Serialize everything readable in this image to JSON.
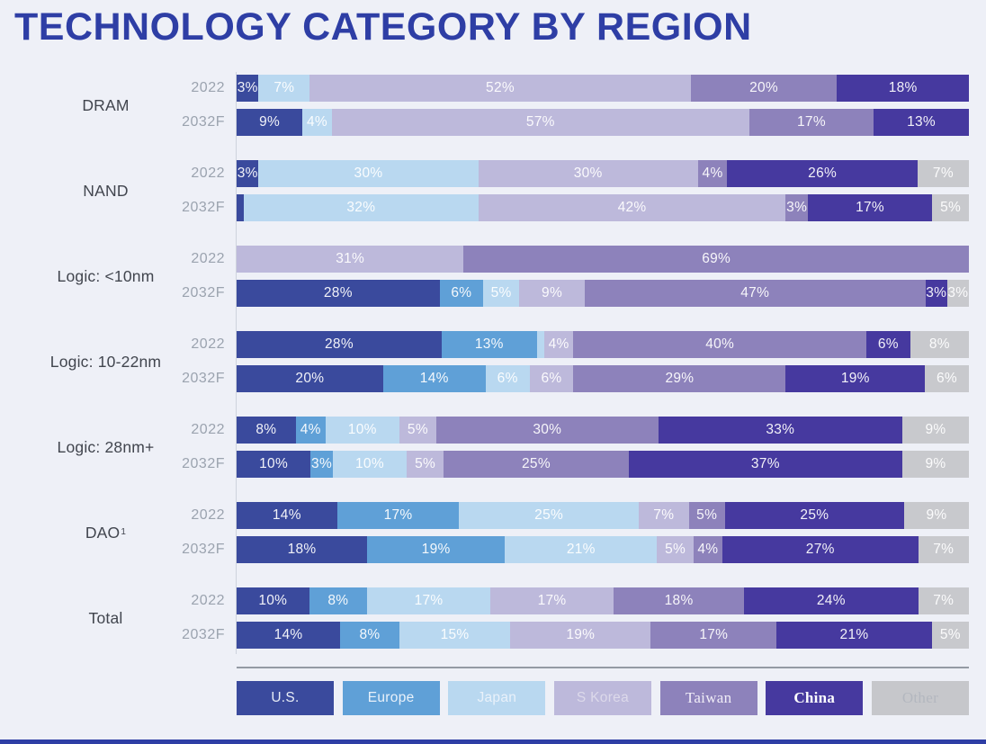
{
  "title": "TECHNOLOGY CATEGORY BY REGION",
  "colors": {
    "background": "#eef0f7",
    "title": "#2e3ea5",
    "category_label": "#41454e",
    "year_label": "#9ba3af",
    "divider": "#949aa4",
    "bar_label": "#ffffff"
  },
  "legend": [
    {
      "label": "U.S.",
      "color": "#3a4a9d",
      "text_color": "#e8edf6",
      "serif": false,
      "bold": false
    },
    {
      "label": "Europe",
      "color": "#5fa0d7",
      "text_color": "#e9f1fa",
      "serif": false,
      "bold": false
    },
    {
      "label": "Japan",
      "color": "#b9d8f0",
      "text_color": "#e9f1fa",
      "serif": false,
      "bold": false
    },
    {
      "label": "S Korea",
      "color": "#bdb9db",
      "text_color": "#dcd9ea",
      "serif": false,
      "bold": false
    },
    {
      "label": "Taiwan",
      "color": "#8d82bb",
      "text_color": "#f0edf7",
      "serif": true,
      "bold": false
    },
    {
      "label": "China",
      "color": "#46399f",
      "text_color": "#ffffff",
      "serif": true,
      "bold": true
    },
    {
      "label": "Other",
      "color": "#c6c7cb",
      "text_color": "#b3b7bf",
      "serif": true,
      "bold": false
    }
  ],
  "chart_data": {
    "type": "bar",
    "orientation": "horizontal-stacked",
    "units": "percent",
    "title": "TECHNOLOGY CATEGORY BY REGION",
    "legend_position": "bottom",
    "label_rule": "segment labels shown when value >= 3%",
    "series": [
      {
        "name": "U.S.",
        "color": "#3a4a9d"
      },
      {
        "name": "Europe",
        "color": "#5fa0d7"
      },
      {
        "name": "Japan",
        "color": "#b9d8f0"
      },
      {
        "name": "S Korea",
        "color": "#bdb9db"
      },
      {
        "name": "Taiwan",
        "color": "#8d82bb"
      },
      {
        "name": "China",
        "color": "#46399f"
      },
      {
        "name": "Other",
        "color": "#c8c9cd"
      }
    ],
    "groups": [
      {
        "category": "DRAM",
        "sup": "",
        "rows": [
          {
            "year": "2022",
            "values": [
              3,
              0,
              7,
              52,
              20,
              18,
              0
            ]
          },
          {
            "year": "2032F",
            "values": [
              9,
              0,
              4,
              57,
              17,
              13,
              0
            ]
          }
        ]
      },
      {
        "category": "NAND",
        "sup": "",
        "rows": [
          {
            "year": "2022",
            "values": [
              3,
              0,
              30,
              30,
              4,
              26,
              7
            ]
          },
          {
            "year": "2032F",
            "values": [
              1,
              0,
              32,
              42,
              3,
              17,
              5
            ]
          }
        ]
      },
      {
        "category": "Logic: <10nm",
        "sup": "",
        "rows": [
          {
            "year": "2022",
            "values": [
              0,
              0,
              0,
              31,
              69,
              0,
              0
            ]
          },
          {
            "year": "2032F",
            "values": [
              28,
              6,
              5,
              9,
              47,
              3,
              3
            ]
          }
        ]
      },
      {
        "category": "Logic: 10-22nm",
        "sup": "",
        "rows": [
          {
            "year": "2022",
            "values": [
              28,
              13,
              1,
              4,
              40,
              6,
              8
            ]
          },
          {
            "year": "2032F",
            "values": [
              20,
              14,
              6,
              6,
              29,
              19,
              6
            ]
          }
        ]
      },
      {
        "category": "Logic: 28nm+",
        "sup": "",
        "rows": [
          {
            "year": "2022",
            "values": [
              8,
              4,
              10,
              5,
              30,
              33,
              9
            ]
          },
          {
            "year": "2032F",
            "values": [
              10,
              3,
              10,
              5,
              25,
              37,
              9
            ]
          }
        ]
      },
      {
        "category": "DAO",
        "sup": "1",
        "rows": [
          {
            "year": "2022",
            "values": [
              14,
              17,
              25,
              7,
              5,
              25,
              9
            ]
          },
          {
            "year": "2032F",
            "values": [
              18,
              19,
              21,
              5,
              4,
              27,
              7
            ]
          }
        ]
      },
      {
        "category": "Total",
        "sup": "",
        "rows": [
          {
            "year": "2022",
            "values": [
              10,
              8,
              17,
              17,
              18,
              24,
              7
            ]
          },
          {
            "year": "2032F",
            "values": [
              14,
              8,
              15,
              19,
              17,
              21,
              5
            ]
          }
        ]
      }
    ]
  }
}
